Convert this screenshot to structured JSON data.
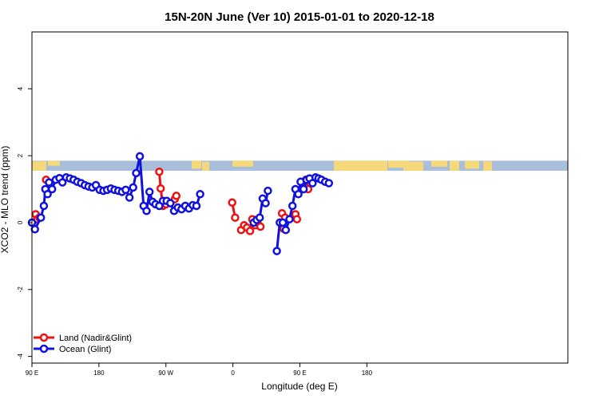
{
  "chart_data": {
    "type": "line",
    "title": "15N-20N June (Ver 10)   2015-01-01 to 2020-12-18",
    "xlabel": "Longitude (deg E)",
    "ylabel": "XCO2 - MLO trend (ppm)",
    "xlim": [
      90,
      450
    ],
    "ylim": [
      -4.2,
      5.7
    ],
    "x_ticks": [
      {
        "value": 90,
        "label": "90 E"
      },
      {
        "value": 180,
        "label": "180"
      },
      {
        "value": 270,
        "label": "90 W"
      },
      {
        "value": 360,
        "label": "0"
      },
      {
        "value": 450,
        "label": "90 E"
      },
      {
        "value": 540,
        "label": "180"
      }
    ],
    "y_ticks": [
      {
        "value": -4,
        "label": "-4"
      },
      {
        "value": -2,
        "label": "-2"
      },
      {
        "value": 0,
        "label": "0"
      },
      {
        "value": 2,
        "label": "2"
      },
      {
        "value": 4,
        "label": "4"
      }
    ],
    "legend_position": "bottom-left",
    "land_band": {
      "y_from": 1.55,
      "y_to": 1.85,
      "ocean_color": "#a8bedb",
      "land_color": "#f5d87a"
    },
    "series": [
      {
        "name": "Land (Nadir&Glint)",
        "color": "#ee1111",
        "segments": [
          [
            [
              95,
              0.25
            ],
            [
              97,
              0.1
            ],
            [
              100,
              0.15
            ]
          ],
          [
            [
              109,
              1.28
            ],
            [
              111,
              1.0
            ]
          ],
          [
            [
              261,
              1.52
            ],
            [
              263,
              1.02
            ],
            [
              266,
              0.5
            ],
            [
              270,
              0.55
            ]
          ],
          [
            [
              282,
              0.7
            ],
            [
              284,
              0.8
            ]
          ],
          [
            [
              359,
              0.6
            ],
            [
              363,
              0.15
            ]
          ],
          [
            [
              371,
              -0.22
            ],
            [
              375,
              -0.08
            ],
            [
              379,
              -0.15
            ],
            [
              383,
              -0.25
            ],
            [
              386,
              0.1
            ],
            [
              390,
              -0.08
            ],
            [
              393,
              0.0
            ],
            [
              397,
              -0.12
            ]
          ],
          [
            [
              426,
              0.28
            ],
            [
              428,
              -0.18
            ],
            [
              430,
              0.15
            ]
          ],
          [
            [
              444,
              0.25
            ],
            [
              446,
              0.1
            ]
          ],
          [
            [
              458,
              1.28
            ],
            [
              461,
              1.0
            ]
          ]
        ]
      },
      {
        "name": "Ocean (Glint)",
        "color": "#1111dd",
        "segments": [
          [
            [
              90,
              0.0
            ],
            [
              94,
              -0.2
            ],
            [
              102,
              0.15
            ],
            [
              106,
              0.5
            ],
            [
              108,
              1.0
            ],
            [
              111,
              0.85
            ],
            [
              113,
              1.2
            ],
            [
              117,
              1.0
            ],
            [
              122,
              1.28
            ],
            [
              127,
              1.33
            ],
            [
              131,
              1.2
            ],
            [
              136,
              1.35
            ],
            [
              141,
              1.32
            ],
            [
              146,
              1.28
            ],
            [
              151,
              1.22
            ],
            [
              156,
              1.18
            ],
            [
              161,
              1.12
            ],
            [
              166,
              1.08
            ],
            [
              171,
              1.05
            ],
            [
              176,
              1.12
            ],
            [
              181,
              0.98
            ],
            [
              186,
              0.95
            ],
            [
              191,
              0.98
            ],
            [
              196,
              1.02
            ],
            [
              201,
              0.98
            ],
            [
              206,
              0.95
            ],
            [
              211,
              0.92
            ],
            [
              216,
              0.98
            ],
            [
              221,
              0.75
            ],
            [
              226,
              1.05
            ],
            [
              230,
              1.48
            ],
            [
              235,
              1.98
            ],
            [
              240,
              0.5
            ],
            [
              244,
              0.35
            ],
            [
              248,
              0.92
            ],
            [
              252,
              0.62
            ],
            [
              256,
              0.55
            ],
            [
              261,
              0.5
            ],
            [
              266,
              0.65
            ],
            [
              271,
              0.65
            ],
            [
              276,
              0.58
            ],
            [
              281,
              0.35
            ],
            [
              286,
              0.45
            ],
            [
              291,
              0.4
            ],
            [
              296,
              0.5
            ],
            [
              301,
              0.42
            ],
            [
              306,
              0.52
            ],
            [
              311,
              0.5
            ],
            [
              316,
              0.85
            ]
          ],
          [
            [
              388,
              0.0
            ],
            [
              392,
              0.08
            ],
            [
              396,
              0.15
            ],
            [
              400,
              0.72
            ],
            [
              404,
              0.58
            ],
            [
              407,
              0.95
            ]
          ],
          [
            [
              419,
              -0.85
            ],
            [
              423,
              0.0
            ],
            [
              427,
              0.0
            ],
            [
              431,
              -0.22
            ],
            [
              436,
              0.1
            ],
            [
              440,
              0.5
            ],
            [
              444,
              1.0
            ],
            [
              448,
              0.85
            ],
            [
              451,
              1.22
            ],
            [
              455,
              1.0
            ],
            [
              459,
              1.28
            ],
            [
              463,
              1.32
            ],
            [
              467,
              1.18
            ],
            [
              471,
              1.35
            ],
            [
              475,
              1.32
            ],
            [
              479,
              1.28
            ],
            [
              484,
              1.22
            ],
            [
              489,
              1.18
            ]
          ]
        ]
      }
    ]
  }
}
